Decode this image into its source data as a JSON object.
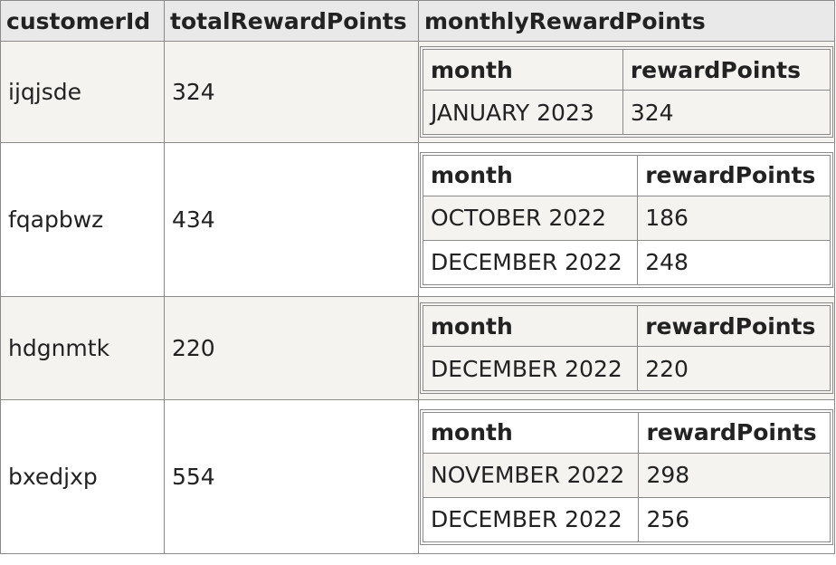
{
  "headers": {
    "customerId": "customerId",
    "totalRewardPoints": "totalRewardPoints",
    "monthlyRewardPoints": "monthlyRewardPoints"
  },
  "nested_headers": {
    "month": "month",
    "rewardPoints": "rewardPoints"
  },
  "rows": [
    {
      "customerId": "ijqjsde",
      "totalRewardPoints": "324",
      "monthly": [
        {
          "month": "JANUARY 2023",
          "rewardPoints": "324"
        }
      ]
    },
    {
      "customerId": "fqapbwz",
      "totalRewardPoints": "434",
      "monthly": [
        {
          "month": "OCTOBER 2022",
          "rewardPoints": "186"
        },
        {
          "month": "DECEMBER 2022",
          "rewardPoints": "248"
        }
      ]
    },
    {
      "customerId": "hdgnmtk",
      "totalRewardPoints": "220",
      "monthly": [
        {
          "month": "DECEMBER 2022",
          "rewardPoints": "220"
        }
      ]
    },
    {
      "customerId": "bxedjxp",
      "totalRewardPoints": "554",
      "monthly": [
        {
          "month": "NOVEMBER 2022",
          "rewardPoints": "298"
        },
        {
          "month": "DECEMBER 2022",
          "rewardPoints": "256"
        }
      ]
    }
  ]
}
